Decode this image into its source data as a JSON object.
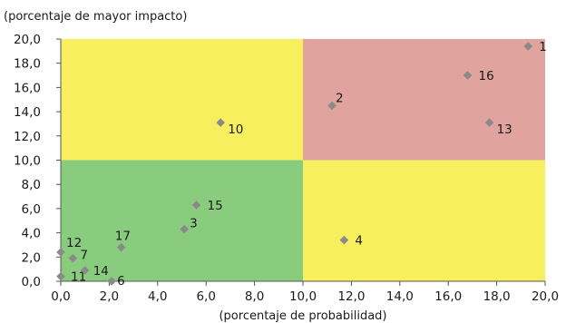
{
  "chart_data": {
    "type": "scatter",
    "ylabel": "(porcentaje de mayor impacto)",
    "xlabel": "(porcentaje de probabilidad)",
    "xlim": [
      0,
      20
    ],
    "ylim": [
      0,
      20
    ],
    "x_ticks": [
      "0,0",
      "2,0",
      "4,0",
      "6,0",
      "8,0",
      "10,0",
      "12,0",
      "14,0",
      "16,0",
      "18,0",
      "20,0"
    ],
    "y_ticks": [
      "0,0",
      "2,0",
      "4,0",
      "6,0",
      "8,0",
      "10,0",
      "12,0",
      "14,0",
      "16,0",
      "18,0",
      "20,0"
    ],
    "grid": false,
    "quadrants": [
      {
        "name": "low-prob-high-impact",
        "x": [
          0,
          10
        ],
        "y": [
          10,
          20
        ],
        "color": "#f7ef5e"
      },
      {
        "name": "high-prob-high-impact",
        "x": [
          10,
          20
        ],
        "y": [
          10,
          20
        ],
        "color": "#e0a39e"
      },
      {
        "name": "low-prob-low-impact",
        "x": [
          0,
          10
        ],
        "y": [
          0,
          10
        ],
        "color": "#8acc7e"
      },
      {
        "name": "high-prob-low-impact",
        "x": [
          10,
          20
        ],
        "y": [
          0,
          10
        ],
        "color": "#f7ef5e"
      }
    ],
    "marker_color": "#8a8a8a",
    "points": [
      {
        "label": "1",
        "x": 19.3,
        "y": 19.4
      },
      {
        "label": "2",
        "x": 11.2,
        "y": 14.5
      },
      {
        "label": "3",
        "x": 5.1,
        "y": 4.3
      },
      {
        "label": "4",
        "x": 11.7,
        "y": 3.4
      },
      {
        "label": "6",
        "x": 2.1,
        "y": 0.0
      },
      {
        "label": "7",
        "x": 0.5,
        "y": 1.9
      },
      {
        "label": "10",
        "x": 6.6,
        "y": 13.1
      },
      {
        "label": "11",
        "x": 0.0,
        "y": 0.4
      },
      {
        "label": "12",
        "x": 0.0,
        "y": 2.4
      },
      {
        "label": "13",
        "x": 17.7,
        "y": 13.1
      },
      {
        "label": "14",
        "x": 1.0,
        "y": 0.9
      },
      {
        "label": "15",
        "x": 5.6,
        "y": 6.3
      },
      {
        "label": "16",
        "x": 16.8,
        "y": 17.0
      },
      {
        "label": "17",
        "x": 2.5,
        "y": 2.8
      }
    ]
  }
}
